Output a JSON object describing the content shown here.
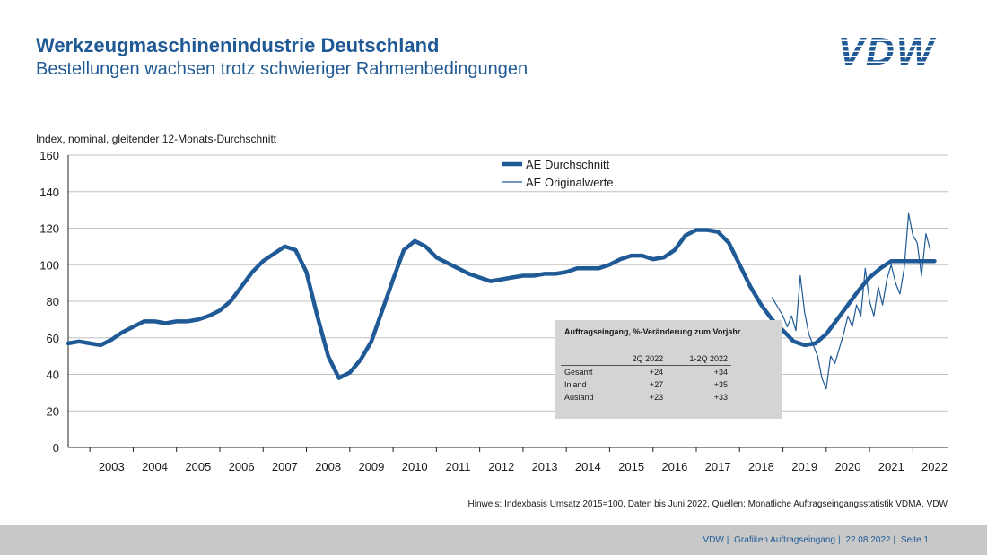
{
  "header": {
    "title": "Werkzeugmaschinenindustrie Deutschland",
    "subtitle": "Bestellungen wachsen trotz schwieriger Rahmenbedingungen",
    "logo_text": "VDW"
  },
  "chart_data": {
    "type": "line",
    "title": "",
    "ylabel": "Index, nominal, gleitender 12-Monats-Durchschnitt",
    "xlabel": "",
    "ylim": [
      0,
      160
    ],
    "yticks": [
      0,
      20,
      40,
      60,
      80,
      100,
      120,
      140,
      160
    ],
    "x_range": [
      2002.5,
      2022.8
    ],
    "x_tick_labels": [
      "2003",
      "2004",
      "2005",
      "2006",
      "2007",
      "2008",
      "2009",
      "2010",
      "2011",
      "2012",
      "2013",
      "2014",
      "2015",
      "2016",
      "2017",
      "2018",
      "2019",
      "2020",
      "2021",
      "2022"
    ],
    "grid": "horizontal",
    "legend_placement": "top-center",
    "colors": {
      "primary": "#1f5a96"
    },
    "series": [
      {
        "name": "AE Durchschnitt",
        "style": "thick",
        "x": [
          2002.5,
          2002.75,
          2003.0,
          2003.25,
          2003.5,
          2003.75,
          2004.0,
          2004.25,
          2004.5,
          2004.75,
          2005.0,
          2005.25,
          2005.5,
          2005.75,
          2006.0,
          2006.25,
          2006.5,
          2006.75,
          2007.0,
          2007.25,
          2007.5,
          2007.75,
          2008.0,
          2008.25,
          2008.5,
          2008.75,
          2009.0,
          2009.25,
          2009.5,
          2009.75,
          2010.0,
          2010.25,
          2010.5,
          2010.75,
          2011.0,
          2011.25,
          2011.5,
          2011.75,
          2012.0,
          2012.25,
          2012.5,
          2012.75,
          2013.0,
          2013.25,
          2013.5,
          2013.75,
          2014.0,
          2014.25,
          2014.5,
          2014.75,
          2015.0,
          2015.25,
          2015.5,
          2015.75,
          2016.0,
          2016.25,
          2016.5,
          2016.75,
          2017.0,
          2017.25,
          2017.5,
          2017.75,
          2018.0,
          2018.25,
          2018.5,
          2018.75,
          2019.0,
          2019.25,
          2019.5,
          2019.75,
          2020.0,
          2020.25,
          2020.5,
          2020.75,
          2021.0,
          2021.25,
          2021.5,
          2021.75,
          2022.0,
          2022.25,
          2022.5
        ],
        "values": [
          57,
          58,
          57,
          56,
          59,
          63,
          66,
          69,
          69,
          68,
          69,
          69,
          70,
          72,
          75,
          80,
          88,
          96,
          102,
          106,
          110,
          108,
          96,
          72,
          50,
          38,
          41,
          48,
          58,
          75,
          92,
          108,
          113,
          110,
          104,
          101,
          98,
          95,
          93,
          91,
          92,
          93,
          94,
          94,
          95,
          95,
          96,
          98,
          98,
          98,
          100,
          103,
          105,
          105,
          103,
          104,
          108,
          116,
          119,
          119,
          118,
          112,
          100,
          88,
          78,
          70,
          64,
          58,
          56,
          57,
          62,
          70,
          78,
          86,
          93,
          98,
          102,
          102,
          102,
          102,
          102
        ]
      },
      {
        "name": "AE Originalwerte",
        "style": "thin",
        "x": [
          2018.75,
          2019.0,
          2019.1,
          2019.2,
          2019.3,
          2019.4,
          2019.5,
          2019.6,
          2019.7,
          2019.8,
          2019.9,
          2020.0,
          2020.1,
          2020.2,
          2020.3,
          2020.4,
          2020.5,
          2020.6,
          2020.7,
          2020.8,
          2020.9,
          2021.0,
          2021.1,
          2021.2,
          2021.3,
          2021.4,
          2021.5,
          2021.6,
          2021.7,
          2021.8,
          2021.9,
          2022.0,
          2022.1,
          2022.2,
          2022.3,
          2022.4
        ],
        "values": [
          82,
          72,
          66,
          72,
          64,
          94,
          74,
          62,
          56,
          50,
          38,
          32,
          50,
          46,
          54,
          62,
          72,
          66,
          78,
          72,
          98,
          80,
          72,
          88,
          78,
          92,
          100,
          90,
          84,
          98,
          128,
          116,
          112,
          94,
          117,
          108
        ]
      }
    ]
  },
  "inset_table": {
    "title": "Auftragseingang, %-Veränderung zum Vorjahr",
    "columns": [
      "2Q 2022",
      "1-2Q 2022"
    ],
    "rows": [
      {
        "label": "Gesamt",
        "q2": "+24",
        "h1": "+34"
      },
      {
        "label": "Inland",
        "q2": "+27",
        "h1": "+35"
      },
      {
        "label": "Ausland",
        "q2": "+23",
        "h1": "+33"
      }
    ]
  },
  "note": "Hinweis: Indexbasis Umsatz 2015=100, Daten bis Juni 2022, Quellen: Monatliche Auftragseingangsstatistik VDMA, VDW",
  "footer": {
    "org": "VDW",
    "section": "Grafiken Auftragseingang",
    "date": "22.08.2022",
    "page": "Seite 1"
  }
}
